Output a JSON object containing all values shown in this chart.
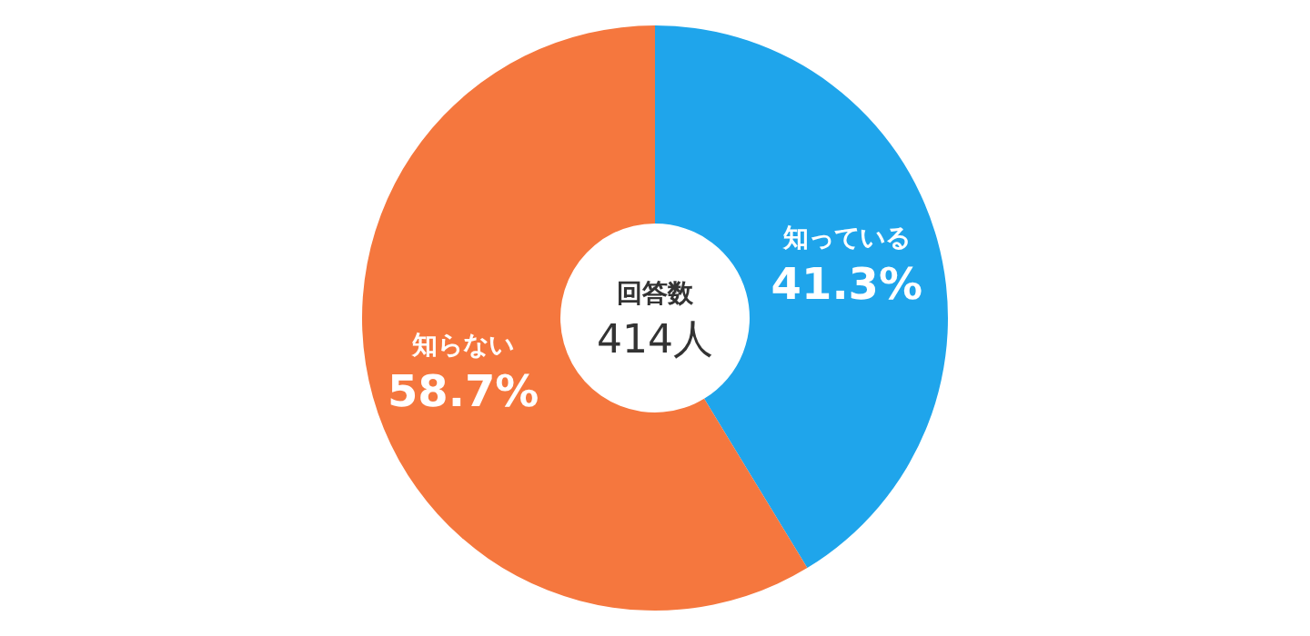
{
  "chart_data": {
    "type": "donut",
    "categories": [
      "知っている",
      "知らない"
    ],
    "values": [
      41.3,
      58.7
    ],
    "colors": [
      "#1fa5eb",
      "#f5773e"
    ],
    "value_labels": [
      "41.3%",
      "58.7%"
    ],
    "annotations": [
      "回答数",
      "414人"
    ]
  }
}
